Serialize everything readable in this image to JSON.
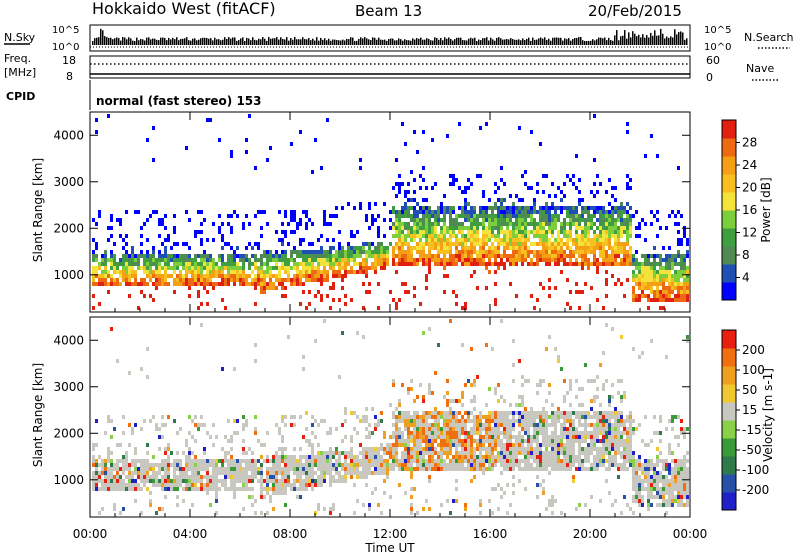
{
  "header": {
    "title": "Hokkaido West (fitACF)",
    "beam": "Beam 13",
    "date": "20/Feb/2015"
  },
  "top_panel": {
    "left_label": "N.Sky",
    "left_ticks": [
      "10^5",
      "10^0"
    ],
    "right_label": "N.Search",
    "right_ticks": [
      "10^5",
      "10^0"
    ]
  },
  "freq_panel": {
    "left_label_1": "Freq.",
    "left_label_2": "[MHz]",
    "left_ticks": [
      "18",
      "8"
    ],
    "right_label": "Nave",
    "right_ticks": [
      "60",
      "0"
    ]
  },
  "cpid_panel": {
    "label": "CPID",
    "mode_text": "normal (fast stereo) 153"
  },
  "chart_data": [
    {
      "type": "heatmap",
      "panel": "power",
      "x_ticks": [
        "00:00",
        "04:00",
        "08:00",
        "12:00",
        "16:00",
        "20:00",
        "00:00"
      ],
      "xlabel": "Time UT",
      "ylabel": "Slant Range [km]",
      "y_ticks": [
        "1000",
        "2000",
        "3000",
        "4000"
      ],
      "ylim": [
        200,
        4500
      ],
      "colorbar": {
        "label": "Power [dB]",
        "ticks": [
          "4",
          "8",
          "12",
          "16",
          "20",
          "24",
          "28"
        ],
        "colors": [
          "#0000ff",
          "#1f4fb5",
          "#4f8a54",
          "#3f9e3f",
          "#7ccf3a",
          "#f5e23a",
          "#f7c020",
          "#f5a014",
          "#ee6a10",
          "#e02010"
        ]
      }
    },
    {
      "type": "heatmap",
      "panel": "velocity",
      "x_ticks": [
        "00:00",
        "04:00",
        "08:00",
        "12:00",
        "16:00",
        "20:00",
        "00:00"
      ],
      "xlabel": "Time UT",
      "ylabel": "Slant Range [km]",
      "y_ticks": [
        "1000",
        "2000",
        "3000",
        "4000"
      ],
      "ylim": [
        200,
        4500
      ],
      "colorbar": {
        "label": "Velocity [m s-1]",
        "ticks": [
          "200",
          "100",
          "50",
          "15",
          "-15",
          "-50",
          "-100",
          "-200"
        ],
        "colors": [
          "#2020c8",
          "#2850a8",
          "#2f7a4a",
          "#3a9a3a",
          "#8ad048",
          "#c8c8c0",
          "#f0c830",
          "#f0a020",
          "#f07010",
          "#e82010"
        ]
      }
    }
  ]
}
